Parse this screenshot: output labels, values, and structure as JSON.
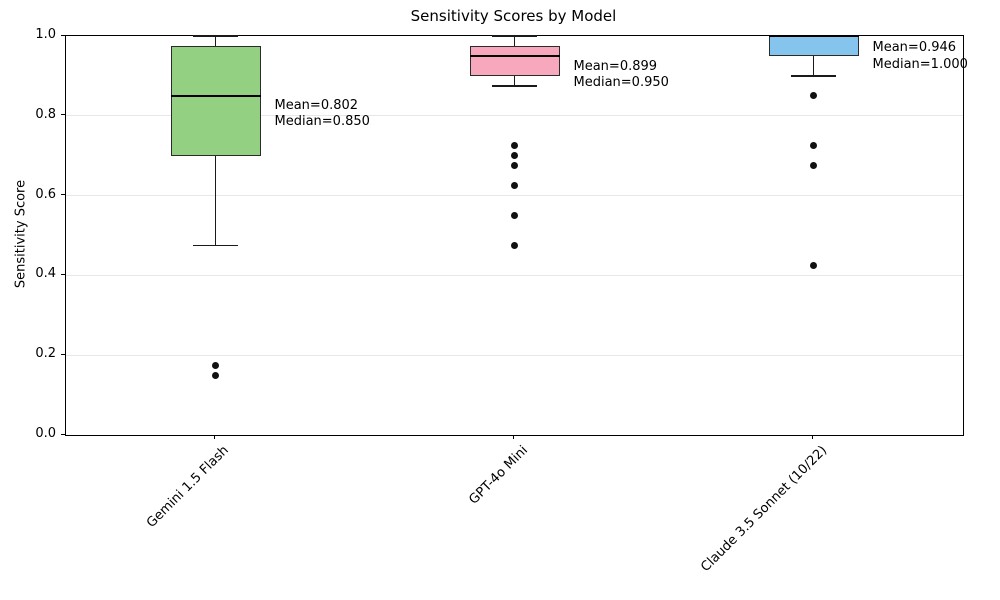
{
  "chart_data": {
    "type": "box",
    "title": "Sensitivity Scores by Model",
    "xlabel": "",
    "ylabel": "Sensitivity Score",
    "ylim": [
      0.0,
      1.0
    ],
    "ytick_values": [
      0.0,
      0.2,
      0.4,
      0.6,
      0.8,
      1.0
    ],
    "grid": "horizontal light-gray lines at interior y ticks",
    "legend": "none",
    "categories": [
      "Gemini 1.5 Flash",
      "GPT-4o Mini",
      "Claude 3.5 Sonnet (10/22)"
    ],
    "series": [
      {
        "name": "Gemini 1.5 Flash",
        "box_color": "#94d082",
        "whisker_low": 0.475,
        "q1": 0.7,
        "median": 0.85,
        "q3": 0.975,
        "whisker_high": 1.0,
        "outliers": [
          0.175,
          0.15
        ],
        "mean": 0.802,
        "annotation_lines": [
          "Mean=0.802",
          "Median=0.850"
        ]
      },
      {
        "name": "GPT-4o Mini",
        "box_color": "#f8a8bc",
        "whisker_low": 0.875,
        "q1": 0.9,
        "median": 0.95,
        "q3": 0.975,
        "whisker_high": 1.0,
        "outliers": [
          0.725,
          0.7,
          0.675,
          0.625,
          0.55,
          0.475
        ],
        "mean": 0.899,
        "annotation_lines": [
          "Mean=0.899",
          "Median=0.950"
        ]
      },
      {
        "name": "Claude 3.5 Sonnet (10/22)",
        "box_color": "#85c5ed",
        "whisker_low": 0.9,
        "q1": 0.95,
        "median": 1.0,
        "q3": 1.0,
        "whisker_high": 1.0,
        "outliers": [
          0.85,
          0.725,
          0.675,
          0.425
        ],
        "mean": 0.946,
        "annotation_lines": [
          "Mean=0.946",
          "Median=1.000"
        ]
      }
    ],
    "colors": {
      "box_edge": "#2b2b2b",
      "median": "#000000",
      "flier": "#111111",
      "grid": "#e7e7e7",
      "spine": "#000000"
    }
  }
}
